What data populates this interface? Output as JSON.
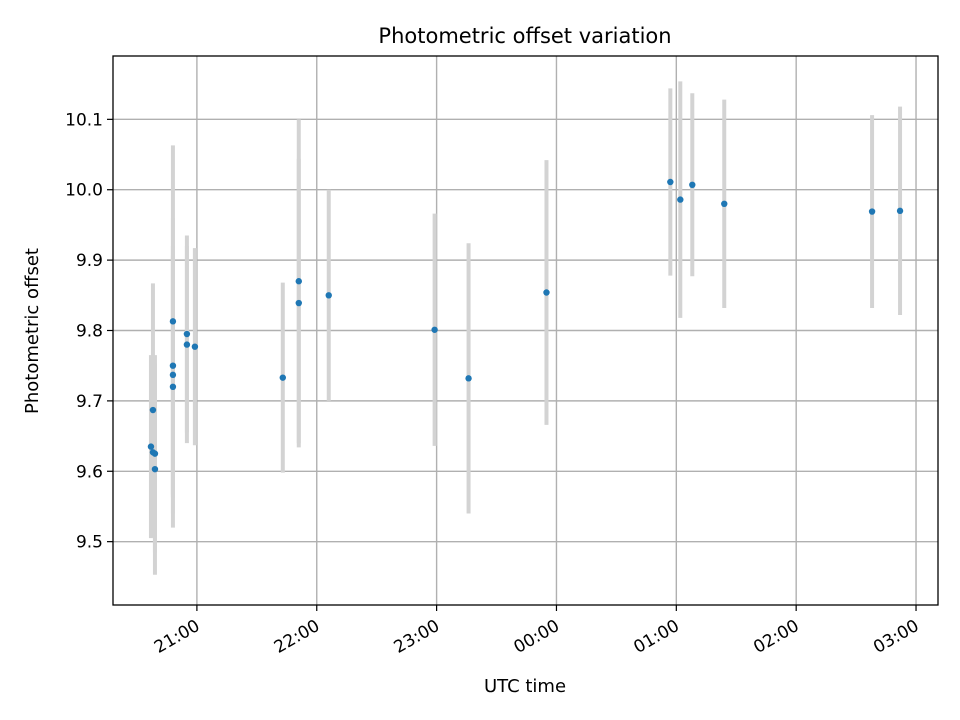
{
  "chart_data": {
    "type": "scatter",
    "title": "Photometric offset variation",
    "xlabel": "UTC time",
    "ylabel": "Photometric offset",
    "x_axis_kind": "time",
    "xlim": [
      "20:18",
      "03:11"
    ],
    "ylim": [
      9.41,
      10.19
    ],
    "grid": true,
    "legend": "none",
    "colors": {
      "marker": "#1f77b4",
      "errorbar": "#d3d3d3"
    },
    "x_ticks": [
      {
        "time": "21:00",
        "label": "21:00"
      },
      {
        "time": "22:00",
        "label": "22:00"
      },
      {
        "time": "23:00",
        "label": "23:00"
      },
      {
        "time": "00:00",
        "label": "00:00"
      },
      {
        "time": "01:00",
        "label": "01:00"
      },
      {
        "time": "02:00",
        "label": "02:00"
      },
      {
        "time": "03:00",
        "label": "03:00"
      }
    ],
    "y_ticks": [
      {
        "value": 9.5,
        "label": "9.5"
      },
      {
        "value": 9.6,
        "label": "9.6"
      },
      {
        "value": 9.7,
        "label": "9.7"
      },
      {
        "value": 9.8,
        "label": "9.8"
      },
      {
        "value": 9.9,
        "label": "9.9"
      },
      {
        "value": 10.0,
        "label": "10.0"
      },
      {
        "value": 10.1,
        "label": "10.1"
      }
    ],
    "points": [
      {
        "time": "20:37",
        "y": 9.635,
        "yerr": 0.13
      },
      {
        "time": "20:38",
        "y": 9.687,
        "yerr": 0.18
      },
      {
        "time": "20:38",
        "y": 9.627,
        "yerr": 0.12
      },
      {
        "time": "20:39",
        "y": 9.603,
        "yerr": 0.15
      },
      {
        "time": "20:39",
        "y": 9.625,
        "yerr": 0.14
      },
      {
        "time": "20:48",
        "y": 9.813,
        "yerr": 0.25
      },
      {
        "time": "20:48",
        "y": 9.75,
        "yerr": 0.21
      },
      {
        "time": "20:48",
        "y": 9.737,
        "yerr": 0.17
      },
      {
        "time": "20:48",
        "y": 9.72,
        "yerr": 0.2
      },
      {
        "time": "20:55",
        "y": 9.795,
        "yerr": 0.14
      },
      {
        "time": "20:55",
        "y": 9.78,
        "yerr": 0.14
      },
      {
        "time": "20:59",
        "y": 9.777,
        "yerr": 0.14
      },
      {
        "time": "21:43",
        "y": 9.733,
        "yerr": 0.135
      },
      {
        "time": "21:51",
        "y": 9.87,
        "yerr": 0.23
      },
      {
        "time": "21:51",
        "y": 9.839,
        "yerr": 0.205
      },
      {
        "time": "22:06",
        "y": 9.85,
        "yerr": 0.15
      },
      {
        "time": "22:59",
        "y": 9.801,
        "yerr": 0.165
      },
      {
        "time": "23:16",
        "y": 9.732,
        "yerr": 0.192
      },
      {
        "time": "23:55",
        "y": 9.854,
        "yerr": 0.188
      },
      {
        "time": "00:57",
        "y": 10.011,
        "yerr": 0.133
      },
      {
        "time": "01:02",
        "y": 9.986,
        "yerr": 0.168
      },
      {
        "time": "01:08",
        "y": 10.007,
        "yerr": 0.13
      },
      {
        "time": "01:24",
        "y": 9.98,
        "yerr": 0.148
      },
      {
        "time": "02:38",
        "y": 9.969,
        "yerr": 0.137
      },
      {
        "time": "02:52",
        "y": 9.97,
        "yerr": 0.148
      }
    ]
  }
}
